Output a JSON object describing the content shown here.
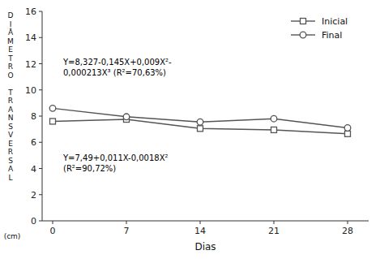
{
  "chart_data": {
    "type": "line",
    "x_label": "Dias",
    "y_label": "DIÂMETRO TRANSVERSAL",
    "y_label_unit": "(cm)",
    "x": [
      0,
      7,
      14,
      21,
      28
    ],
    "series": [
      {
        "name": "Inicial",
        "color": "#555555",
        "marker": "square",
        "values": [
          7.6,
          7.75,
          7.05,
          6.95,
          6.65
        ]
      },
      {
        "name": "Final",
        "color": "#555555",
        "marker": "circle",
        "values": [
          8.6,
          7.95,
          7.55,
          7.8,
          7.1
        ]
      }
    ],
    "annotations": [
      {
        "text": "Y=8,327-0,145X+0,009X²-\n0,000213X³  (R²=70,63%)",
        "x": 1.0,
        "y": 12.5
      },
      {
        "text": "Y=7,49+0,011X-0,0018X²\n(R²=90,72%)",
        "x": 1.0,
        "y": 5.2
      }
    ],
    "xlim": [
      -1,
      30
    ],
    "ylim": [
      0,
      16
    ],
    "xticks": [
      0,
      7,
      14,
      21,
      28
    ],
    "yticks": [
      0,
      2,
      4,
      6,
      8,
      10,
      12,
      14,
      16
    ],
    "legend": "upper right",
    "grid": false
  }
}
